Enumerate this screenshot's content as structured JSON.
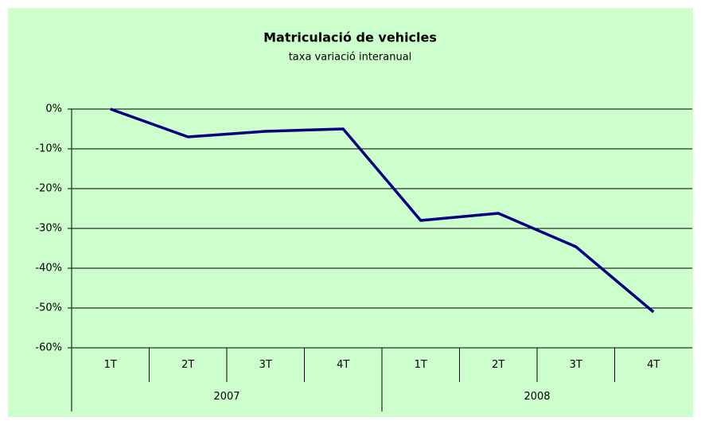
{
  "chart_data": {
    "type": "line",
    "title": "Matriculació de vehicles",
    "subtitle": "taxa variació interanual",
    "categories": [
      "1T",
      "2T",
      "3T",
      "4T",
      "1T",
      "2T",
      "3T",
      "4T"
    ],
    "category_groups": [
      "2007",
      "2008"
    ],
    "values": [
      0,
      -7,
      -5.6,
      -5,
      -28,
      -26.2,
      -34.6,
      -51
    ],
    "color": "#000080",
    "background": "#ccffcc",
    "ylim": [
      -60,
      0
    ],
    "yticks": [
      {
        "value": 0,
        "label": "0%"
      },
      {
        "value": -10,
        "label": "-10%"
      },
      {
        "value": -20,
        "label": "-20%"
      },
      {
        "value": -30,
        "label": "-30%"
      },
      {
        "value": -40,
        "label": "-40%"
      },
      {
        "value": -50,
        "label": "-50%"
      },
      {
        "value": -60,
        "label": "-60%"
      }
    ],
    "grid": true
  }
}
